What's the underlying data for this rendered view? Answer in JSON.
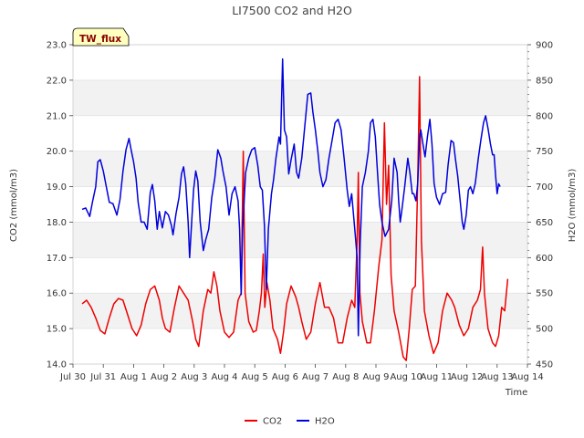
{
  "chart_data": {
    "type": "line",
    "title": "LI7500 CO2 and H2O",
    "xlabel": "Time",
    "ylabel": "CO2 (mmol/m3)",
    "y2label": "H2O (mmol/m3)",
    "badge": "TW_flux",
    "xlim": [
      0,
      15
    ],
    "ylim": [
      14.0,
      23.0
    ],
    "y2lim": [
      450,
      900
    ],
    "x_ticks": [
      {
        "pos": 0,
        "label": "Jul 30"
      },
      {
        "pos": 1,
        "label": "Jul 31"
      },
      {
        "pos": 2,
        "label": "Aug 1"
      },
      {
        "pos": 3,
        "label": "Aug 2"
      },
      {
        "pos": 4,
        "label": "Aug 3"
      },
      {
        "pos": 5,
        "label": "Aug 4"
      },
      {
        "pos": 6,
        "label": "Aug 5"
      },
      {
        "pos": 7,
        "label": "Aug 6"
      },
      {
        "pos": 8,
        "label": "Aug 7"
      },
      {
        "pos": 9,
        "label": "Aug 8"
      },
      {
        "pos": 10,
        "label": "Aug 9"
      },
      {
        "pos": 11,
        "label": "Aug 10"
      },
      {
        "pos": 12,
        "label": "Aug 11"
      },
      {
        "pos": 13,
        "label": "Aug 12"
      },
      {
        "pos": 14,
        "label": "Aug 13"
      },
      {
        "pos": 15,
        "label": "Aug 14"
      }
    ],
    "y_ticks": [
      "14.0",
      "15.0",
      "16.0",
      "17.0",
      "18.0",
      "19.0",
      "20.0",
      "21.0",
      "22.0",
      "23.0"
    ],
    "y2_ticks": [
      "450",
      "500",
      "550",
      "600",
      "650",
      "700",
      "750",
      "800",
      "850",
      "900"
    ],
    "legend": [
      {
        "name": "CO2",
        "color": "#ee0000"
      },
      {
        "name": "H2O",
        "color": "#0000dd"
      }
    ],
    "series": [
      {
        "name": "CO2",
        "axis": "left",
        "color": "#ee0000",
        "points": [
          [
            0.3,
            15.7
          ],
          [
            0.45,
            15.8
          ],
          [
            0.6,
            15.6
          ],
          [
            0.75,
            15.3
          ],
          [
            0.9,
            14.95
          ],
          [
            1.05,
            14.85
          ],
          [
            1.2,
            15.3
          ],
          [
            1.35,
            15.7
          ],
          [
            1.5,
            15.85
          ],
          [
            1.65,
            15.8
          ],
          [
            1.8,
            15.4
          ],
          [
            1.95,
            15.0
          ],
          [
            2.1,
            14.8
          ],
          [
            2.25,
            15.1
          ],
          [
            2.4,
            15.7
          ],
          [
            2.55,
            16.1
          ],
          [
            2.7,
            16.2
          ],
          [
            2.85,
            15.8
          ],
          [
            2.95,
            15.3
          ],
          [
            3.05,
            15.0
          ],
          [
            3.2,
            14.9
          ],
          [
            3.35,
            15.6
          ],
          [
            3.5,
            16.2
          ],
          [
            3.65,
            16.0
          ],
          [
            3.8,
            15.8
          ],
          [
            3.95,
            15.2
          ],
          [
            4.05,
            14.7
          ],
          [
            4.15,
            14.5
          ],
          [
            4.3,
            15.5
          ],
          [
            4.45,
            16.1
          ],
          [
            4.55,
            16.0
          ],
          [
            4.65,
            16.6
          ],
          [
            4.75,
            16.2
          ],
          [
            4.85,
            15.5
          ],
          [
            5.0,
            14.9
          ],
          [
            5.15,
            14.75
          ],
          [
            5.3,
            14.9
          ],
          [
            5.45,
            15.8
          ],
          [
            5.55,
            16.0
          ],
          [
            5.62,
            20.0
          ],
          [
            5.68,
            16.0
          ],
          [
            5.8,
            15.2
          ],
          [
            5.95,
            14.9
          ],
          [
            6.05,
            14.95
          ],
          [
            6.15,
            15.5
          ],
          [
            6.22,
            16.0
          ],
          [
            6.28,
            17.1
          ],
          [
            6.33,
            15.6
          ],
          [
            6.4,
            16.3
          ],
          [
            6.5,
            15.8
          ],
          [
            6.6,
            15.0
          ],
          [
            6.75,
            14.7
          ],
          [
            6.85,
            14.3
          ],
          [
            6.95,
            14.9
          ],
          [
            7.05,
            15.7
          ],
          [
            7.2,
            16.2
          ],
          [
            7.35,
            15.9
          ],
          [
            7.45,
            15.6
          ],
          [
            7.55,
            15.2
          ],
          [
            7.7,
            14.7
          ],
          [
            7.85,
            14.9
          ],
          [
            8.0,
            15.7
          ],
          [
            8.15,
            16.3
          ],
          [
            8.3,
            15.6
          ],
          [
            8.45,
            15.6
          ],
          [
            8.6,
            15.3
          ],
          [
            8.75,
            14.6
          ],
          [
            8.9,
            14.6
          ],
          [
            9.05,
            15.3
          ],
          [
            9.2,
            15.8
          ],
          [
            9.3,
            15.6
          ],
          [
            9.38,
            17.5
          ],
          [
            9.42,
            19.4
          ],
          [
            9.47,
            16.0
          ],
          [
            9.55,
            15.2
          ],
          [
            9.7,
            14.6
          ],
          [
            9.82,
            14.6
          ],
          [
            9.95,
            15.5
          ],
          [
            10.1,
            16.8
          ],
          [
            10.2,
            17.5
          ],
          [
            10.28,
            20.8
          ],
          [
            10.35,
            18.5
          ],
          [
            10.42,
            19.6
          ],
          [
            10.5,
            16.5
          ],
          [
            10.6,
            15.5
          ],
          [
            10.75,
            14.9
          ],
          [
            10.9,
            14.2
          ],
          [
            11.0,
            14.1
          ],
          [
            11.1,
            15.0
          ],
          [
            11.2,
            16.1
          ],
          [
            11.3,
            16.2
          ],
          [
            11.38,
            19.2
          ],
          [
            11.44,
            22.1
          ],
          [
            11.5,
            17.5
          ],
          [
            11.6,
            15.5
          ],
          [
            11.75,
            14.8
          ],
          [
            11.9,
            14.3
          ],
          [
            12.05,
            14.6
          ],
          [
            12.2,
            15.5
          ],
          [
            12.35,
            16.0
          ],
          [
            12.5,
            15.8
          ],
          [
            12.6,
            15.6
          ],
          [
            12.75,
            15.1
          ],
          [
            12.9,
            14.8
          ],
          [
            13.05,
            15.0
          ],
          [
            13.2,
            15.6
          ],
          [
            13.35,
            15.8
          ],
          [
            13.45,
            16.1
          ],
          [
            13.52,
            17.3
          ],
          [
            13.58,
            16.0
          ],
          [
            13.7,
            15.0
          ],
          [
            13.85,
            14.6
          ],
          [
            13.95,
            14.5
          ],
          [
            14.05,
            14.8
          ],
          [
            14.15,
            15.6
          ],
          [
            14.25,
            15.5
          ],
          [
            14.35,
            16.4
          ]
        ]
      },
      {
        "name": "H2O",
        "axis": "right",
        "color": "#0000dd",
        "points": [
          [
            0.3,
            668
          ],
          [
            0.42,
            670
          ],
          [
            0.55,
            658
          ],
          [
            0.65,
            680
          ],
          [
            0.75,
            700
          ],
          [
            0.82,
            735
          ],
          [
            0.9,
            738
          ],
          [
            1.0,
            722
          ],
          [
            1.1,
            700
          ],
          [
            1.2,
            678
          ],
          [
            1.32,
            676
          ],
          [
            1.45,
            660
          ],
          [
            1.55,
            682
          ],
          [
            1.65,
            722
          ],
          [
            1.75,
            752
          ],
          [
            1.85,
            768
          ],
          [
            1.92,
            752
          ],
          [
            2.0,
            735
          ],
          [
            2.08,
            712
          ],
          [
            2.15,
            678
          ],
          [
            2.25,
            650
          ],
          [
            2.35,
            650
          ],
          [
            2.45,
            640
          ],
          [
            2.55,
            692
          ],
          [
            2.62,
            703
          ],
          [
            2.7,
            680
          ],
          [
            2.78,
            640
          ],
          [
            2.85,
            665
          ],
          [
            2.95,
            642
          ],
          [
            3.05,
            665
          ],
          [
            3.15,
            660
          ],
          [
            3.25,
            645
          ],
          [
            3.3,
            632
          ],
          [
            3.4,
            662
          ],
          [
            3.5,
            685
          ],
          [
            3.58,
            718
          ],
          [
            3.65,
            728
          ],
          [
            3.72,
            705
          ],
          [
            3.8,
            650
          ],
          [
            3.85,
            600
          ],
          [
            3.9,
            638
          ],
          [
            3.98,
            695
          ],
          [
            4.05,
            722
          ],
          [
            4.12,
            708
          ],
          [
            4.2,
            650
          ],
          [
            4.3,
            610
          ],
          [
            4.38,
            625
          ],
          [
            4.48,
            640
          ],
          [
            4.58,
            685
          ],
          [
            4.68,
            712
          ],
          [
            4.78,
            752
          ],
          [
            4.88,
            740
          ],
          [
            4.95,
            722
          ],
          [
            5.05,
            700
          ],
          [
            5.15,
            660
          ],
          [
            5.25,
            690
          ],
          [
            5.35,
            700
          ],
          [
            5.45,
            680
          ],
          [
            5.5,
            640
          ],
          [
            5.55,
            548
          ],
          [
            5.6,
            640
          ],
          [
            5.7,
            720
          ],
          [
            5.8,
            740
          ],
          [
            5.9,
            752
          ],
          [
            6.0,
            755
          ],
          [
            6.1,
            730
          ],
          [
            6.18,
            700
          ],
          [
            6.25,
            695
          ],
          [
            6.32,
            645
          ],
          [
            6.38,
            555
          ],
          [
            6.45,
            640
          ],
          [
            6.55,
            690
          ],
          [
            6.62,
            710
          ],
          [
            6.7,
            740
          ],
          [
            6.8,
            770
          ],
          [
            6.85,
            760
          ],
          [
            6.92,
            880
          ],
          [
            6.98,
            780
          ],
          [
            7.05,
            770
          ],
          [
            7.12,
            718
          ],
          [
            7.2,
            738
          ],
          [
            7.3,
            760
          ],
          [
            7.38,
            720
          ],
          [
            7.45,
            712
          ],
          [
            7.55,
            740
          ],
          [
            7.65,
            785
          ],
          [
            7.75,
            830
          ],
          [
            7.85,
            832
          ],
          [
            7.92,
            805
          ],
          [
            8.0,
            780
          ],
          [
            8.08,
            750
          ],
          [
            8.15,
            720
          ],
          [
            8.25,
            700
          ],
          [
            8.35,
            710
          ],
          [
            8.45,
            740
          ],
          [
            8.55,
            765
          ],
          [
            8.65,
            790
          ],
          [
            8.75,
            795
          ],
          [
            8.85,
            780
          ],
          [
            8.95,
            740
          ],
          [
            9.05,
            695
          ],
          [
            9.12,
            672
          ],
          [
            9.2,
            690
          ],
          [
            9.3,
            640
          ],
          [
            9.38,
            600
          ],
          [
            9.42,
            490
          ],
          [
            9.48,
            620
          ],
          [
            9.55,
            700
          ],
          [
            9.65,
            720
          ],
          [
            9.75,
            750
          ],
          [
            9.82,
            790
          ],
          [
            9.9,
            795
          ],
          [
            9.98,
            770
          ],
          [
            10.05,
            720
          ],
          [
            10.12,
            675
          ],
          [
            10.2,
            650
          ],
          [
            10.3,
            630
          ],
          [
            10.42,
            640
          ],
          [
            10.52,
            680
          ],
          [
            10.6,
            740
          ],
          [
            10.7,
            720
          ],
          [
            10.75,
            680
          ],
          [
            10.8,
            650
          ],
          [
            10.85,
            665
          ],
          [
            10.95,
            700
          ],
          [
            11.05,
            740
          ],
          [
            11.12,
            720
          ],
          [
            11.2,
            690
          ],
          [
            11.25,
            690
          ],
          [
            11.32,
            680
          ],
          [
            11.38,
            705
          ],
          [
            11.44,
            770
          ],
          [
            11.48,
            780
          ],
          [
            11.55,
            760
          ],
          [
            11.62,
            742
          ],
          [
            11.7,
            770
          ],
          [
            11.78,
            795
          ],
          [
            11.85,
            760
          ],
          [
            11.92,
            705
          ],
          [
            12.0,
            685
          ],
          [
            12.1,
            675
          ],
          [
            12.2,
            690
          ],
          [
            12.3,
            692
          ],
          [
            12.38,
            730
          ],
          [
            12.48,
            765
          ],
          [
            12.56,
            762
          ],
          [
            12.62,
            740
          ],
          [
            12.7,
            715
          ],
          [
            12.78,
            680
          ],
          [
            12.85,
            650
          ],
          [
            12.9,
            640
          ],
          [
            12.98,
            660
          ],
          [
            13.05,
            695
          ],
          [
            13.12,
            700
          ],
          [
            13.2,
            690
          ],
          [
            13.28,
            705
          ],
          [
            13.38,
            740
          ],
          [
            13.46,
            765
          ],
          [
            13.55,
            790
          ],
          [
            13.62,
            800
          ],
          [
            13.7,
            782
          ],
          [
            13.78,
            760
          ],
          [
            13.85,
            745
          ],
          [
            13.9,
            745
          ],
          [
            13.95,
            716
          ],
          [
            14.0,
            690
          ],
          [
            14.05,
            704
          ],
          [
            14.1,
            700
          ]
        ]
      }
    ]
  }
}
